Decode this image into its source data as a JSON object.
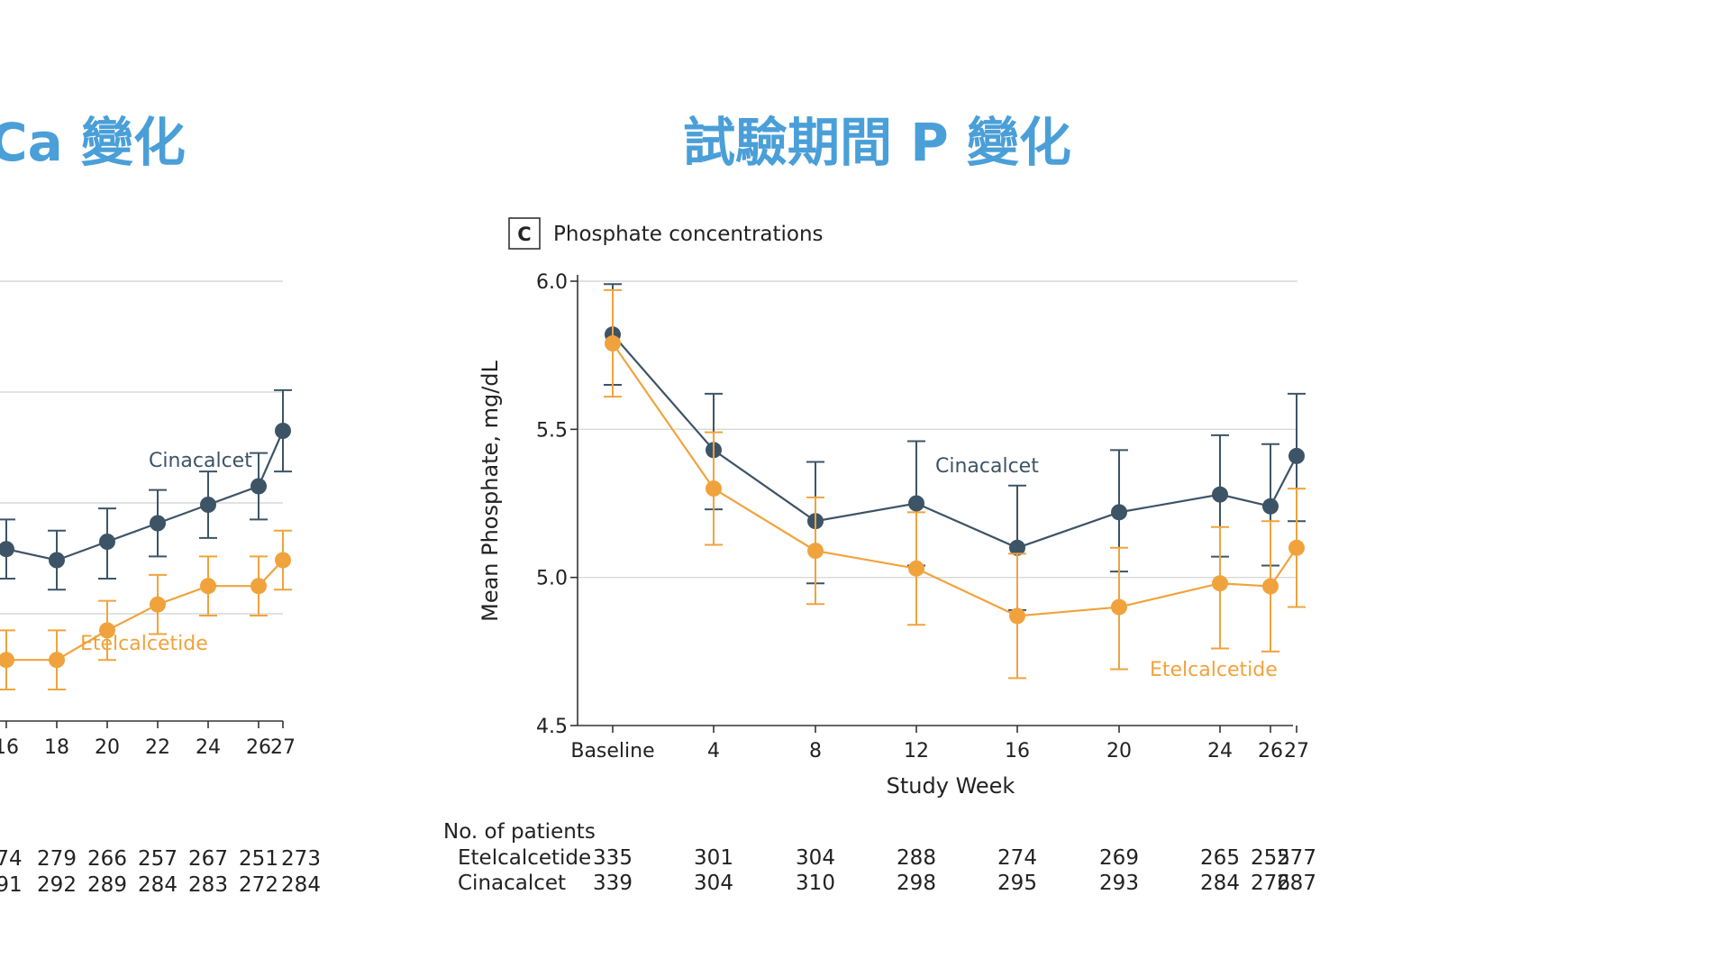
{
  "slide": {
    "left_title": "Ca 變化",
    "right_title": "試驗期間 P 變化"
  },
  "colors": {
    "title": "#4a9fd8",
    "cinacalcet": "#3d5466",
    "etelcalcetide": "#f0a33c"
  },
  "chart_data": [
    {
      "type": "line",
      "panel": "left",
      "title": "",
      "xlabel": "",
      "ylabel": "",
      "x": [
        "16",
        "18",
        "20",
        "22",
        "24",
        "26",
        "27"
      ],
      "grid": true,
      "series": [
        {
          "name": "Cinacalcet",
          "values": [
            8.63,
            8.6,
            8.65,
            8.7,
            8.75,
            8.8,
            8.95
          ],
          "err_low": [
            8.55,
            8.52,
            8.55,
            8.61,
            8.66,
            8.71,
            8.84
          ],
          "err_high": [
            8.71,
            8.68,
            8.74,
            8.79,
            8.84,
            8.89,
            9.06
          ]
        },
        {
          "name": "Etelcalcetide",
          "values": [
            8.33,
            8.33,
            8.41,
            8.48,
            8.53,
            8.53,
            8.6
          ],
          "err_low": [
            8.25,
            8.25,
            8.33,
            8.4,
            8.45,
            8.45,
            8.52
          ],
          "err_high": [
            8.41,
            8.41,
            8.49,
            8.56,
            8.61,
            8.61,
            8.68
          ]
        }
      ],
      "patients_table": {
        "columns": [
          "16",
          "18",
          "20",
          "22",
          "24",
          "26",
          "27"
        ],
        "etelcalcetide": [
          "74",
          "279",
          "266",
          "257",
          "267",
          "251",
          "273"
        ],
        "cinacalcet": [
          "91",
          "292",
          "289",
          "284",
          "283",
          "272",
          "284"
        ]
      }
    },
    {
      "type": "line",
      "panel": "right",
      "panel_letter": "C",
      "title": "Phosphate concentrations",
      "xlabel": "Study Week",
      "ylabel": "Mean Phosphate, mg/dL",
      "ylim": [
        4.5,
        6.0
      ],
      "yticks": [
        "4.5",
        "5.0",
        "5.5",
        "6.0"
      ],
      "x": [
        "Baseline",
        "4",
        "8",
        "12",
        "16",
        "20",
        "24",
        "26",
        "27"
      ],
      "grid": true,
      "series": [
        {
          "name": "Cinacalcet",
          "values": [
            5.82,
            5.43,
            5.19,
            5.25,
            5.1,
            5.22,
            5.28,
            5.24,
            5.41
          ],
          "err_low": [
            5.65,
            5.23,
            4.98,
            5.04,
            4.89,
            5.02,
            5.07,
            5.04,
            5.19
          ],
          "err_high": [
            5.99,
            5.62,
            5.39,
            5.46,
            5.31,
            5.43,
            5.48,
            5.45,
            5.62
          ]
        },
        {
          "name": "Etelcalcetide",
          "values": [
            5.79,
            5.3,
            5.09,
            5.03,
            4.87,
            4.9,
            4.98,
            4.97,
            5.1
          ],
          "err_low": [
            5.61,
            5.11,
            4.91,
            4.84,
            4.66,
            4.69,
            4.76,
            4.75,
            4.9
          ],
          "err_high": [
            5.97,
            5.49,
            5.27,
            5.22,
            5.08,
            5.1,
            5.17,
            5.19,
            5.3
          ]
        }
      ],
      "patients_table": {
        "header": "No. of patients",
        "rows": [
          {
            "label": "Etelcalcetide",
            "values": [
              "335",
              "301",
              "304",
              "288",
              "274",
              "269",
              "265",
              "255",
              "277"
            ]
          },
          {
            "label": "Cinacalcet",
            "values": [
              "339",
              "304",
              "310",
              "298",
              "295",
              "293",
              "284",
              "276",
              "287"
            ]
          }
        ]
      }
    }
  ]
}
